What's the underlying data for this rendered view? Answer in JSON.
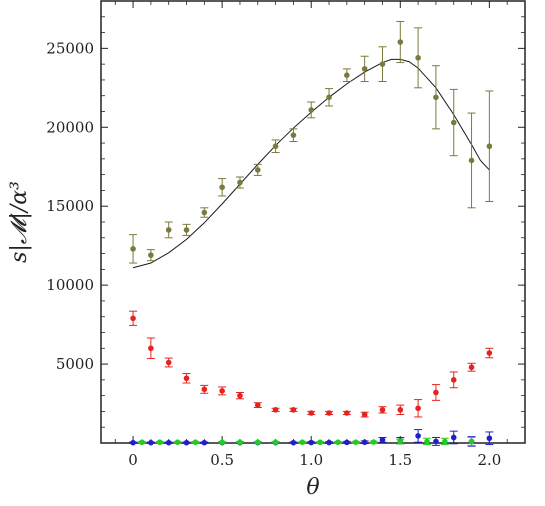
{
  "chart_data": {
    "type": "scatter",
    "xlabel": "θ",
    "ylabel": "s|𝓜|/α³",
    "xlim": [
      -0.18,
      2.2
    ],
    "ylim": [
      0,
      28000
    ],
    "xticks": [
      0,
      0.5,
      1.0,
      1.5,
      2.0
    ],
    "xtick_labels": [
      "0",
      "0.5",
      "1.0",
      "1.5",
      "2.0"
    ],
    "yticks": [
      5000,
      10000,
      15000,
      20000,
      25000
    ],
    "ytick_labels": [
      "5000",
      "10000",
      "15000",
      "20000",
      "25000"
    ],
    "series": [
      {
        "color": "#7a7a3e",
        "marker": "circle",
        "points": [
          {
            "x": 0.0,
            "y": 12300,
            "err": 900
          },
          {
            "x": 0.1,
            "y": 11900,
            "err": 350
          },
          {
            "x": 0.2,
            "y": 13500,
            "err": 500
          },
          {
            "x": 0.3,
            "y": 13500,
            "err": 350
          },
          {
            "x": 0.4,
            "y": 14600,
            "err": 300
          },
          {
            "x": 0.5,
            "y": 16200,
            "err": 550
          },
          {
            "x": 0.6,
            "y": 16500,
            "err": 350
          },
          {
            "x": 0.7,
            "y": 17300,
            "err": 350
          },
          {
            "x": 0.8,
            "y": 18800,
            "err": 400
          },
          {
            "x": 0.9,
            "y": 19500,
            "err": 400
          },
          {
            "x": 1.0,
            "y": 21100,
            "err": 500
          },
          {
            "x": 1.1,
            "y": 21900,
            "err": 550
          },
          {
            "x": 1.2,
            "y": 23300,
            "err": 400
          },
          {
            "x": 1.3,
            "y": 23700,
            "err": 800
          },
          {
            "x": 1.4,
            "y": 24000,
            "err": 1100
          },
          {
            "x": 1.5,
            "y": 25400,
            "err": 1300
          },
          {
            "x": 1.6,
            "y": 24400,
            "err": 1900
          },
          {
            "x": 1.7,
            "y": 21900,
            "err": 2000
          },
          {
            "x": 1.8,
            "y": 20300,
            "err": 2100
          },
          {
            "x": 1.9,
            "y": 17900,
            "err": 3000
          },
          {
            "x": 2.0,
            "y": 18800,
            "err": 3500
          }
        ]
      },
      {
        "color": "#e8231f",
        "marker": "circle",
        "points": [
          {
            "x": 0.0,
            "y": 7900,
            "err": 450
          },
          {
            "x": 0.1,
            "y": 6000,
            "err": 650
          },
          {
            "x": 0.2,
            "y": 5100,
            "err": 280
          },
          {
            "x": 0.3,
            "y": 4100,
            "err": 300
          },
          {
            "x": 0.4,
            "y": 3400,
            "err": 250
          },
          {
            "x": 0.5,
            "y": 3300,
            "err": 250
          },
          {
            "x": 0.6,
            "y": 3000,
            "err": 200
          },
          {
            "x": 0.7,
            "y": 2400,
            "err": 150
          },
          {
            "x": 0.8,
            "y": 2100,
            "err": 100
          },
          {
            "x": 0.9,
            "y": 2100,
            "err": 100
          },
          {
            "x": 1.0,
            "y": 1900,
            "err": 100
          },
          {
            "x": 1.1,
            "y": 1900,
            "err": 100
          },
          {
            "x": 1.2,
            "y": 1900,
            "err": 100
          },
          {
            "x": 1.3,
            "y": 1800,
            "err": 150
          },
          {
            "x": 1.4,
            "y": 2100,
            "err": 200
          },
          {
            "x": 1.5,
            "y": 2100,
            "err": 300
          },
          {
            "x": 1.6,
            "y": 2200,
            "err": 550
          },
          {
            "x": 1.7,
            "y": 3200,
            "err": 500
          },
          {
            "x": 1.8,
            "y": 4000,
            "err": 500
          },
          {
            "x": 1.9,
            "y": 4800,
            "err": 250
          },
          {
            "x": 2.0,
            "y": 5700,
            "err": 300
          }
        ]
      },
      {
        "color": "#1f1fcc",
        "marker": "circle",
        "points": [
          {
            "x": 0.0,
            "y": 20,
            "err": 40
          },
          {
            "x": 0.1,
            "y": 20,
            "err": 40
          },
          {
            "x": 0.2,
            "y": 20,
            "err": 40
          },
          {
            "x": 0.3,
            "y": 20,
            "err": 40
          },
          {
            "x": 0.4,
            "y": 20,
            "err": 40
          },
          {
            "x": 0.5,
            "y": 20,
            "err": 40
          },
          {
            "x": 0.6,
            "y": 20,
            "err": 40
          },
          {
            "x": 0.7,
            "y": 20,
            "err": 40
          },
          {
            "x": 0.8,
            "y": 20,
            "err": 40
          },
          {
            "x": 0.9,
            "y": 20,
            "err": 40
          },
          {
            "x": 1.0,
            "y": 30,
            "err": 50
          },
          {
            "x": 1.1,
            "y": 30,
            "err": 50
          },
          {
            "x": 1.2,
            "y": 40,
            "err": 60
          },
          {
            "x": 1.3,
            "y": 50,
            "err": 80
          },
          {
            "x": 1.4,
            "y": 200,
            "err": 150
          },
          {
            "x": 1.5,
            "y": 150,
            "err": 200
          },
          {
            "x": 1.6,
            "y": 450,
            "err": 400
          },
          {
            "x": 1.7,
            "y": 100,
            "err": 250
          },
          {
            "x": 1.8,
            "y": 350,
            "err": 400
          },
          {
            "x": 1.9,
            "y": 100,
            "err": 300
          },
          {
            "x": 2.0,
            "y": 300,
            "err": 400
          }
        ]
      },
      {
        "color": "#22cc22",
        "marker": "circle",
        "points": [
          {
            "x": 0.05,
            "y": 50,
            "err": 40
          },
          {
            "x": 0.15,
            "y": 50,
            "err": 40
          },
          {
            "x": 0.25,
            "y": 50,
            "err": 40
          },
          {
            "x": 0.35,
            "y": 50,
            "err": 40
          },
          {
            "x": 0.5,
            "y": 50,
            "err": 40
          },
          {
            "x": 0.6,
            "y": 50,
            "err": 40
          },
          {
            "x": 0.7,
            "y": 50,
            "err": 40
          },
          {
            "x": 0.8,
            "y": 50,
            "err": 40
          },
          {
            "x": 0.95,
            "y": 50,
            "err": 40
          },
          {
            "x": 1.05,
            "y": 50,
            "err": 40
          },
          {
            "x": 1.15,
            "y": 50,
            "err": 40
          },
          {
            "x": 1.25,
            "y": 50,
            "err": 50
          },
          {
            "x": 1.35,
            "y": 60,
            "err": 60
          },
          {
            "x": 1.5,
            "y": 100,
            "err": 150
          },
          {
            "x": 1.65,
            "y": 100,
            "err": 200
          },
          {
            "x": 1.75,
            "y": 100,
            "err": 200
          },
          {
            "x": 1.9,
            "y": 100,
            "err": 250
          }
        ]
      }
    ],
    "fit_curve": {
      "color": "#1a1a1a",
      "points": [
        [
          0.0,
          11100
        ],
        [
          0.1,
          11400
        ],
        [
          0.2,
          12050
        ],
        [
          0.3,
          12900
        ],
        [
          0.4,
          13950
        ],
        [
          0.5,
          15150
        ],
        [
          0.6,
          16400
        ],
        [
          0.7,
          17650
        ],
        [
          0.8,
          18850
        ],
        [
          0.9,
          19950
        ],
        [
          1.0,
          20950
        ],
        [
          1.1,
          21900
        ],
        [
          1.2,
          22750
        ],
        [
          1.3,
          23500
        ],
        [
          1.4,
          24100
        ],
        [
          1.45,
          24300
        ],
        [
          1.5,
          24300
        ],
        [
          1.55,
          24150
        ],
        [
          1.6,
          23750
        ],
        [
          1.7,
          22500
        ],
        [
          1.8,
          20800
        ],
        [
          1.9,
          18900
        ],
        [
          1.95,
          17900
        ],
        [
          2.0,
          17300
        ]
      ]
    }
  }
}
